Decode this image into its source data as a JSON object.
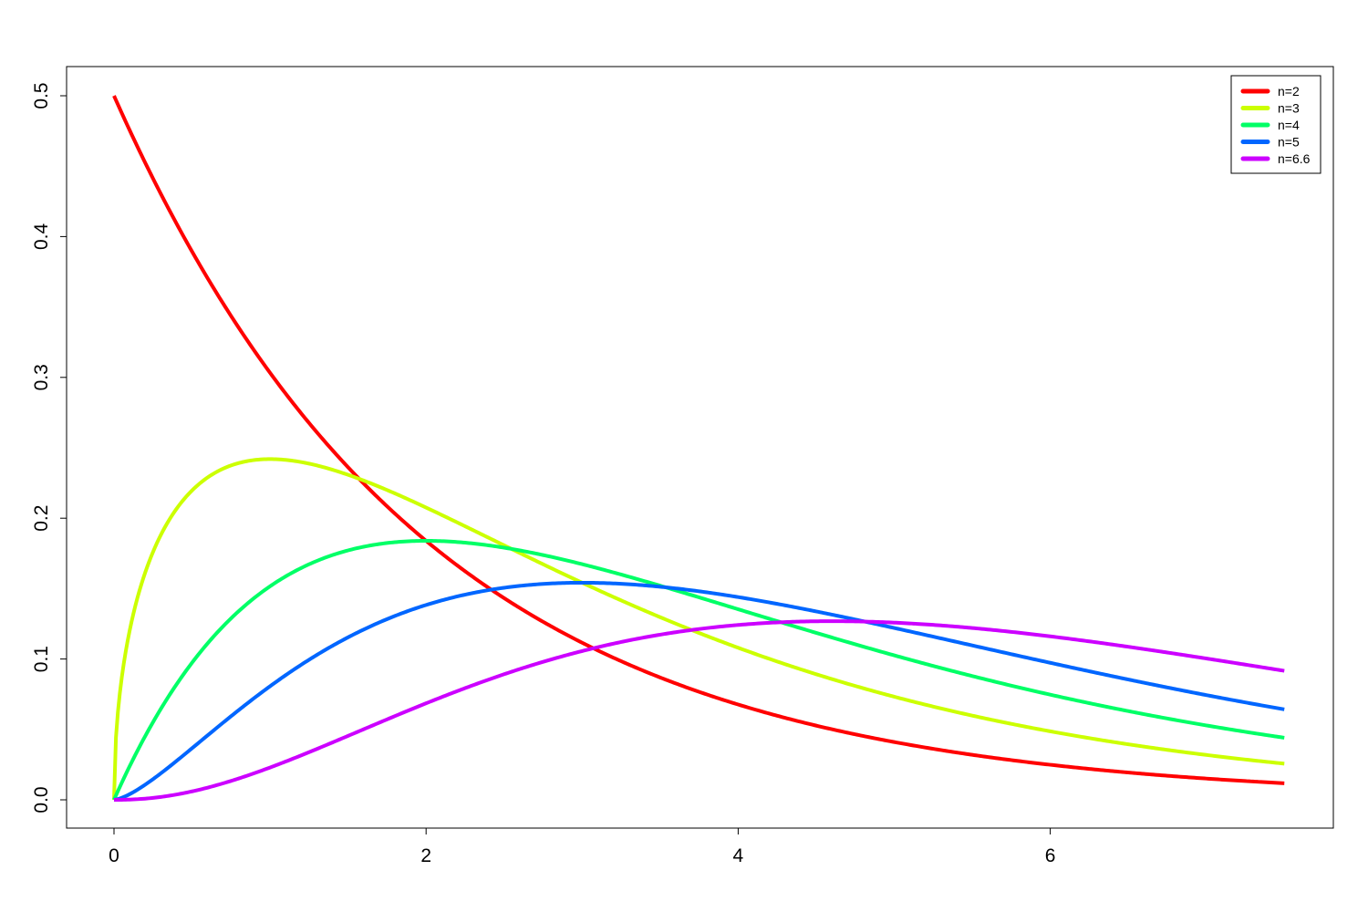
{
  "chart_data": {
    "type": "line",
    "title": "",
    "xlabel": "",
    "ylabel": "",
    "xlim": [
      0,
      7.5
    ],
    "ylim": [
      0,
      0.5
    ],
    "x_ticks": [
      "0",
      "2",
      "4",
      "6"
    ],
    "y_ticks": [
      "0.0",
      "0.1",
      "0.2",
      "0.3",
      "0.4",
      "0.5"
    ],
    "grid": false,
    "legend_position": "top-right",
    "curve": "chi-square density",
    "series": [
      {
        "name": "n=2",
        "df": 2,
        "color": "#FF0000"
      },
      {
        "name": "n=3",
        "df": 3,
        "color": "#CCFF00"
      },
      {
        "name": "n=4",
        "df": 4,
        "color": "#00FF66"
      },
      {
        "name": "n=5",
        "df": 5,
        "color": "#0066FF"
      },
      {
        "name": "n=6.6",
        "df": 6.6,
        "color": "#CC00FF"
      }
    ]
  }
}
